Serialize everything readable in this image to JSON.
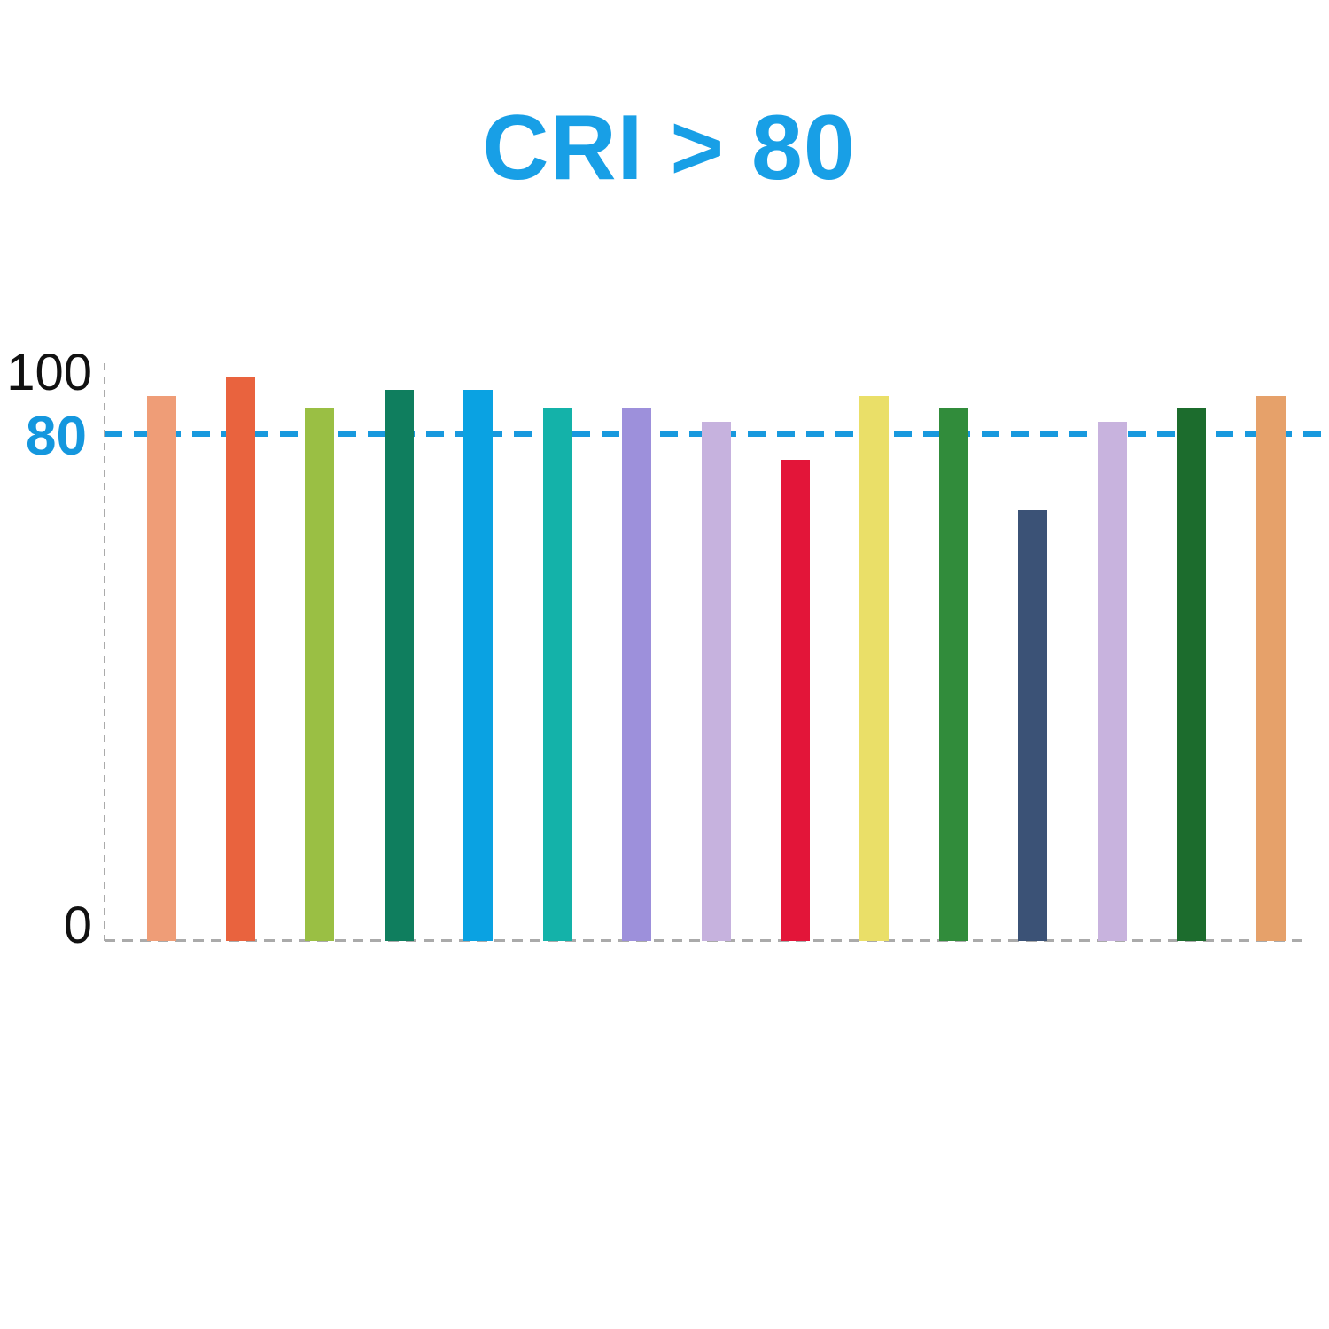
{
  "title": {
    "text": "CRI > 80",
    "color": "#189FE6"
  },
  "y_axis": {
    "tick_top": "100",
    "tick_threshold": "80",
    "tick_bottom": "0",
    "threshold_label_color": "#1497DE",
    "axis_color": "#AAAAAA",
    "label_color": "#111111"
  },
  "chart_data": {
    "type": "bar",
    "title": "CRI > 80",
    "xlabel": "",
    "ylabel": "",
    "ylim": [
      0,
      100
    ],
    "yticks": [
      0,
      80,
      100
    ],
    "grid": false,
    "legend": false,
    "x_tick_labels": [],
    "threshold_line": {
      "value": 80,
      "color": "#1899DE",
      "style": "dashed"
    },
    "bars": [
      {
        "value": 86,
        "color": "#EF9D77",
        "color_name": "salmon"
      },
      {
        "value": 89,
        "color": "#E9633E",
        "color_name": "orange-red"
      },
      {
        "value": 84,
        "color": "#9ABF44",
        "color_name": "yellow-green"
      },
      {
        "value": 87,
        "color": "#0F7E5E",
        "color_name": "sea-green"
      },
      {
        "value": 87,
        "color": "#0AA2E2",
        "color_name": "azure"
      },
      {
        "value": 84,
        "color": "#14B2A9",
        "color_name": "teal"
      },
      {
        "value": 84,
        "color": "#9D90DB",
        "color_name": "purple"
      },
      {
        "value": 82,
        "color": "#C6B2DE",
        "color_name": "light-lavender"
      },
      {
        "value": 76,
        "color": "#E31539",
        "color_name": "crimson"
      },
      {
        "value": 86,
        "color": "#EADF68",
        "color_name": "yellow"
      },
      {
        "value": 84,
        "color": "#318C3B",
        "color_name": "green"
      },
      {
        "value": 68,
        "color": "#3B5276",
        "color_name": "navy-slate"
      },
      {
        "value": 82,
        "color": "#C8B3DE",
        "color_name": "light-lavender"
      },
      {
        "value": 84,
        "color": "#1C6C2D",
        "color_name": "dark-green"
      },
      {
        "value": 86,
        "color": "#E6A16A",
        "color_name": "tan-orange"
      }
    ]
  }
}
